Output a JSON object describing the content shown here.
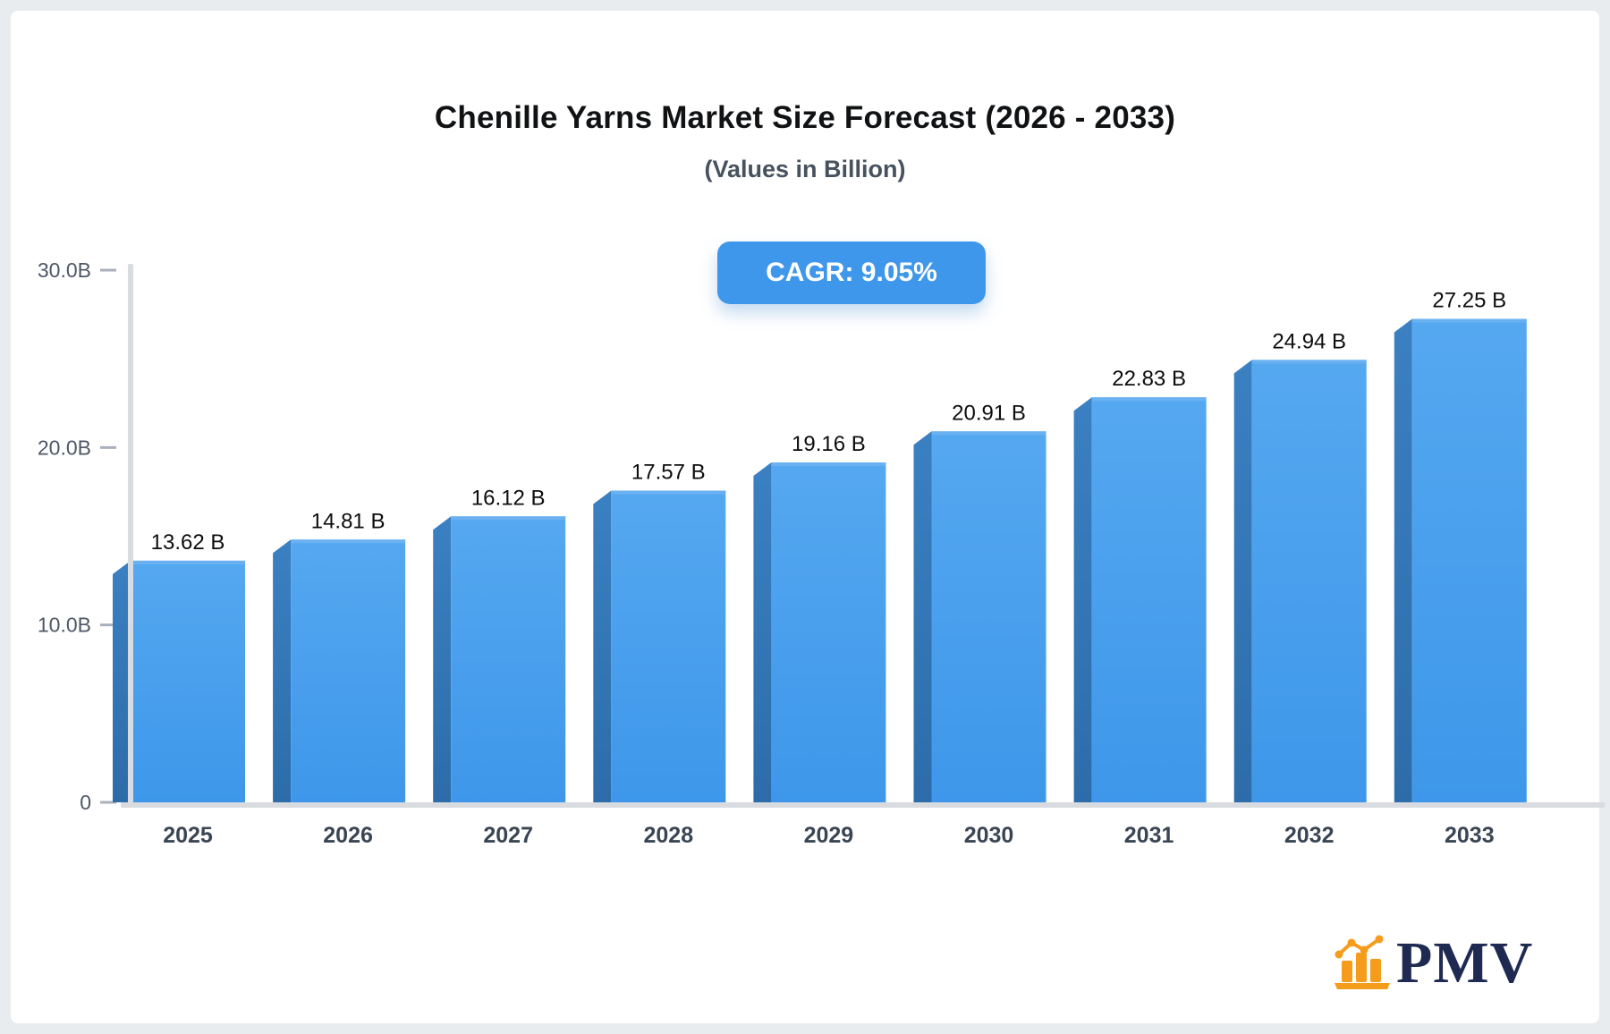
{
  "header": {
    "title": "Chenille Yarns Market Size Forecast (2026 - 2033)",
    "subtitle": "(Values in Billion)"
  },
  "badge": {
    "label": "CAGR: 9.05%"
  },
  "chart_data": {
    "type": "bar",
    "title": "Chenille Yarns Market Size Forecast (2026 - 2033)",
    "subtitle": "(Values in Billion)",
    "xlabel": "",
    "ylabel": "",
    "unit": "Billion",
    "categories": [
      "2025",
      "2026",
      "2027",
      "2028",
      "2029",
      "2030",
      "2031",
      "2032",
      "2033"
    ],
    "values": [
      13.62,
      14.81,
      16.12,
      17.57,
      19.16,
      20.91,
      22.83,
      24.94,
      27.25
    ],
    "value_labels": [
      "13.62 B",
      "14.81 B",
      "16.12 B",
      "17.57 B",
      "19.16 B",
      "20.91 B",
      "22.83 B",
      "24.94 B",
      "27.25 B"
    ],
    "cagr": "9.05%",
    "ylim": [
      0,
      30
    ],
    "y_ticks": [
      {
        "value": 0,
        "label": "0"
      },
      {
        "value": 10,
        "label": "10.0B"
      },
      {
        "value": 20,
        "label": "20.0B"
      },
      {
        "value": 30,
        "label": "30.0B"
      }
    ],
    "grid": false,
    "legend": "none",
    "bar_style": "3d"
  },
  "logo": {
    "text": "PMV"
  },
  "colors": {
    "bar_front_top": "#55a8f0",
    "bar_front_bottom": "#3e97ea",
    "bar_top_highlight": "#6ab1f2",
    "bar_side": "#3174b4",
    "bar_side_dark": "#2d6ca9",
    "axis_line": "#d8dbe0",
    "tick_mark": "#a8b0bb",
    "badge_bg": "#3e97ea",
    "badge_text": "#ffffff",
    "logo_orange": "#f59c1c",
    "logo_navy": "#1e2a51"
  }
}
